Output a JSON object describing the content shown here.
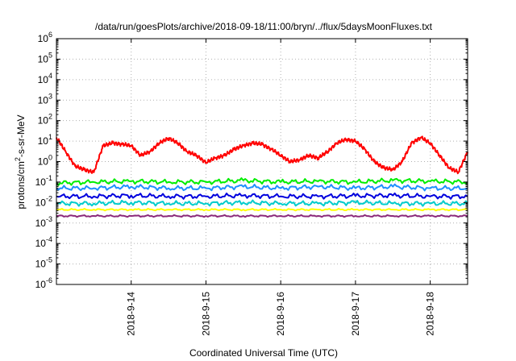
{
  "chart_data": {
    "type": "line",
    "title": "/data/run/goesPlots/archive/2018-09-18/11:00/bryn/../flux/5daysMoonFluxes.txt",
    "xlabel": "Coordinated Universal Time (UTC)",
    "ylabel_parts": [
      "protons/cm",
      "2",
      "-s-sr-MeV"
    ],
    "y_scale": "log",
    "ylim": [
      1e-06,
      1000000.0
    ],
    "y_ticks": [
      {
        "base": "10",
        "exp": "-6",
        "value": 1e-06
      },
      {
        "base": "10",
        "exp": "-5",
        "value": 1e-05
      },
      {
        "base": "10",
        "exp": "-4",
        "value": 0.0001
      },
      {
        "base": "10",
        "exp": "-3",
        "value": 0.001
      },
      {
        "base": "10",
        "exp": "-2",
        "value": 0.01
      },
      {
        "base": "10",
        "exp": "-1",
        "value": 0.1
      },
      {
        "base": "10",
        "exp": "0",
        "value": 1
      },
      {
        "base": "10",
        "exp": "1",
        "value": 10
      },
      {
        "base": "10",
        "exp": "2",
        "value": 100
      },
      {
        "base": "10",
        "exp": "3",
        "value": 1000
      },
      {
        "base": "10",
        "exp": "4",
        "value": 10000
      },
      {
        "base": "10",
        "exp": "5",
        "value": 100000
      },
      {
        "base": "10",
        "exp": "6",
        "value": 1000000
      }
    ],
    "xlim": [
      "2018-09-13T00:00",
      "2018-09-18T12:00"
    ],
    "x_ticks": [
      {
        "label": "2018-9-14",
        "value": "2018-09-14T00:00"
      },
      {
        "label": "2018-9-15",
        "value": "2018-09-15T00:00"
      },
      {
        "label": "2018-9-16",
        "value": "2018-09-16T00:00"
      },
      {
        "label": "2018-9-17",
        "value": "2018-09-17T00:00"
      },
      {
        "label": "2018-9-18",
        "value": "2018-09-18T00:00"
      }
    ],
    "grid": true,
    "legend": "none",
    "series": [
      {
        "color": "#ff0000",
        "x": [
          "2018-09-13T00:00",
          "2018-09-13T03:00",
          "2018-09-13T06:00",
          "2018-09-13T09:00",
          "2018-09-13T12:00",
          "2018-09-13T15:00",
          "2018-09-13T18:00",
          "2018-09-13T21:00",
          "2018-09-14T00:00",
          "2018-09-14T03:00",
          "2018-09-14T06:00",
          "2018-09-14T09:00",
          "2018-09-14T12:00",
          "2018-09-14T15:00",
          "2018-09-14T18:00",
          "2018-09-14T21:00",
          "2018-09-15T00:00",
          "2018-09-15T03:00",
          "2018-09-15T06:00",
          "2018-09-15T09:00",
          "2018-09-15T12:00",
          "2018-09-15T15:00",
          "2018-09-15T18:00",
          "2018-09-15T21:00",
          "2018-09-16T00:00",
          "2018-09-16T03:00",
          "2018-09-16T06:00",
          "2018-09-16T09:00",
          "2018-09-16T12:00",
          "2018-09-16T15:00",
          "2018-09-16T18:00",
          "2018-09-16T21:00",
          "2018-09-17T00:00",
          "2018-09-17T03:00",
          "2018-09-17T06:00",
          "2018-09-17T09:00",
          "2018-09-17T12:00",
          "2018-09-17T15:00",
          "2018-09-17T18:00",
          "2018-09-17T21:00",
          "2018-09-18T00:00",
          "2018-09-18T03:00",
          "2018-09-18T06:00",
          "2018-09-18T09:00",
          "2018-09-18T12:00"
        ],
        "values": [
          15,
          3,
          0.6,
          0.4,
          0.3,
          6,
          8,
          7,
          6,
          2,
          3,
          8,
          14,
          8,
          3,
          2,
          0.9,
          1.5,
          2,
          4,
          6,
          8,
          7,
          4,
          2,
          1,
          1.2,
          2,
          1.5,
          3,
          8,
          12,
          10,
          4,
          1,
          0.5,
          0.4,
          1,
          8,
          15,
          8,
          2,
          0.5,
          0.3,
          3
        ]
      },
      {
        "color": "#00ee00",
        "x": [
          "2018-09-13T00:00",
          "2018-09-13T12:00",
          "2018-09-14T00:00",
          "2018-09-14T12:00",
          "2018-09-15T00:00",
          "2018-09-15T12:00",
          "2018-09-16T00:00",
          "2018-09-16T12:00",
          "2018-09-17T00:00",
          "2018-09-17T12:00",
          "2018-09-18T00:00",
          "2018-09-18T12:00"
        ],
        "values": [
          0.09,
          0.1,
          0.11,
          0.1,
          0.1,
          0.12,
          0.1,
          0.11,
          0.1,
          0.12,
          0.11,
          0.1
        ]
      },
      {
        "color": "#1e90ff",
        "x": [
          "2018-09-13T00:00",
          "2018-09-13T12:00",
          "2018-09-14T00:00",
          "2018-09-14T12:00",
          "2018-09-15T00:00",
          "2018-09-15T12:00",
          "2018-09-16T00:00",
          "2018-09-16T12:00",
          "2018-09-17T00:00",
          "2018-09-17T12:00",
          "2018-09-18T00:00",
          "2018-09-18T12:00"
        ],
        "values": [
          0.05,
          0.05,
          0.06,
          0.05,
          0.05,
          0.06,
          0.05,
          0.06,
          0.05,
          0.06,
          0.05,
          0.05
        ]
      },
      {
        "color": "#0000dd",
        "x": [
          "2018-09-13T00:00",
          "2018-09-13T12:00",
          "2018-09-14T00:00",
          "2018-09-14T12:00",
          "2018-09-15T00:00",
          "2018-09-15T12:00",
          "2018-09-16T00:00",
          "2018-09-16T12:00",
          "2018-09-17T00:00",
          "2018-09-17T12:00",
          "2018-09-18T00:00",
          "2018-09-18T12:00"
        ],
        "values": [
          0.02,
          0.02,
          0.022,
          0.02,
          0.02,
          0.022,
          0.02,
          0.02,
          0.021,
          0.022,
          0.02,
          0.02
        ]
      },
      {
        "color": "#00cccc",
        "x": [
          "2018-09-13T00:00",
          "2018-09-13T12:00",
          "2018-09-14T00:00",
          "2018-09-14T12:00",
          "2018-09-15T00:00",
          "2018-09-15T12:00",
          "2018-09-16T00:00",
          "2018-09-16T12:00",
          "2018-09-17T00:00",
          "2018-09-17T12:00",
          "2018-09-18T00:00",
          "2018-09-18T12:00"
        ],
        "values": [
          0.009,
          0.009,
          0.01,
          0.009,
          0.009,
          0.01,
          0.009,
          0.009,
          0.01,
          0.009,
          0.009,
          0.009
        ]
      },
      {
        "color": "#ffff00",
        "x": [
          "2018-09-13T00:00",
          "2018-09-13T12:00",
          "2018-09-14T00:00",
          "2018-09-14T12:00",
          "2018-09-15T00:00",
          "2018-09-15T12:00",
          "2018-09-16T00:00",
          "2018-09-16T12:00",
          "2018-09-17T00:00",
          "2018-09-17T12:00",
          "2018-09-18T00:00",
          "2018-09-18T12:00"
        ],
        "values": [
          0.0045,
          0.0045,
          0.0045,
          0.0045,
          0.0045,
          0.0045,
          0.0045,
          0.0045,
          0.0045,
          0.0045,
          0.0045,
          0.0045
        ]
      },
      {
        "color": "#8b2a7a",
        "x": [
          "2018-09-13T00:00",
          "2018-09-13T12:00",
          "2018-09-14T00:00",
          "2018-09-14T12:00",
          "2018-09-15T00:00",
          "2018-09-15T12:00",
          "2018-09-16T00:00",
          "2018-09-16T12:00",
          "2018-09-17T00:00",
          "2018-09-17T12:00",
          "2018-09-18T00:00",
          "2018-09-18T12:00"
        ],
        "values": [
          0.0022,
          0.0022,
          0.0022,
          0.0022,
          0.0022,
          0.0022,
          0.0022,
          0.0022,
          0.0022,
          0.0022,
          0.0022,
          0.0022
        ]
      }
    ]
  }
}
